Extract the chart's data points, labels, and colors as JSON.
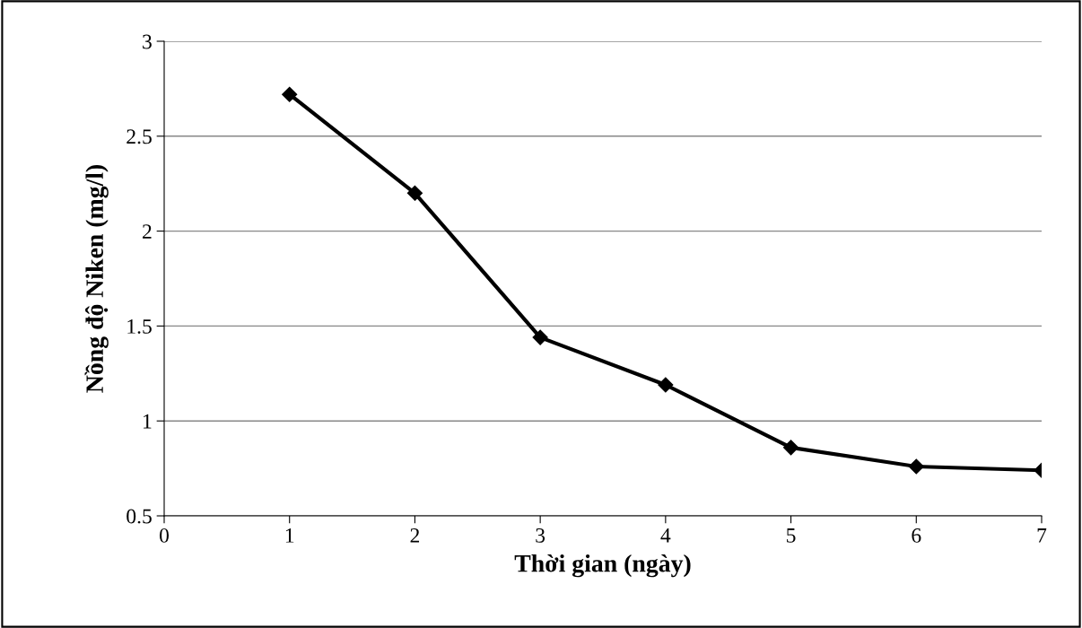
{
  "chart_data": {
    "type": "line",
    "xlabel": "Thời gian (ngày)",
    "ylabel": "Nồng độ Niken (mg/l)",
    "x": [
      1,
      2,
      3,
      4,
      5,
      6,
      7
    ],
    "series": [
      {
        "color": "#000000",
        "values": [
          2.72,
          2.2,
          1.44,
          1.19,
          0.86,
          0.76,
          0.74
        ]
      }
    ],
    "xlim": [
      0,
      7
    ],
    "xticks": [
      0,
      1,
      2,
      3,
      4,
      5,
      6,
      7
    ],
    "ylim": [
      0.5,
      3
    ],
    "yticks": [
      0.5,
      1,
      1.5,
      2,
      2.5,
      3
    ],
    "grid": "y",
    "marker": "diamond",
    "line_style": "solid"
  }
}
